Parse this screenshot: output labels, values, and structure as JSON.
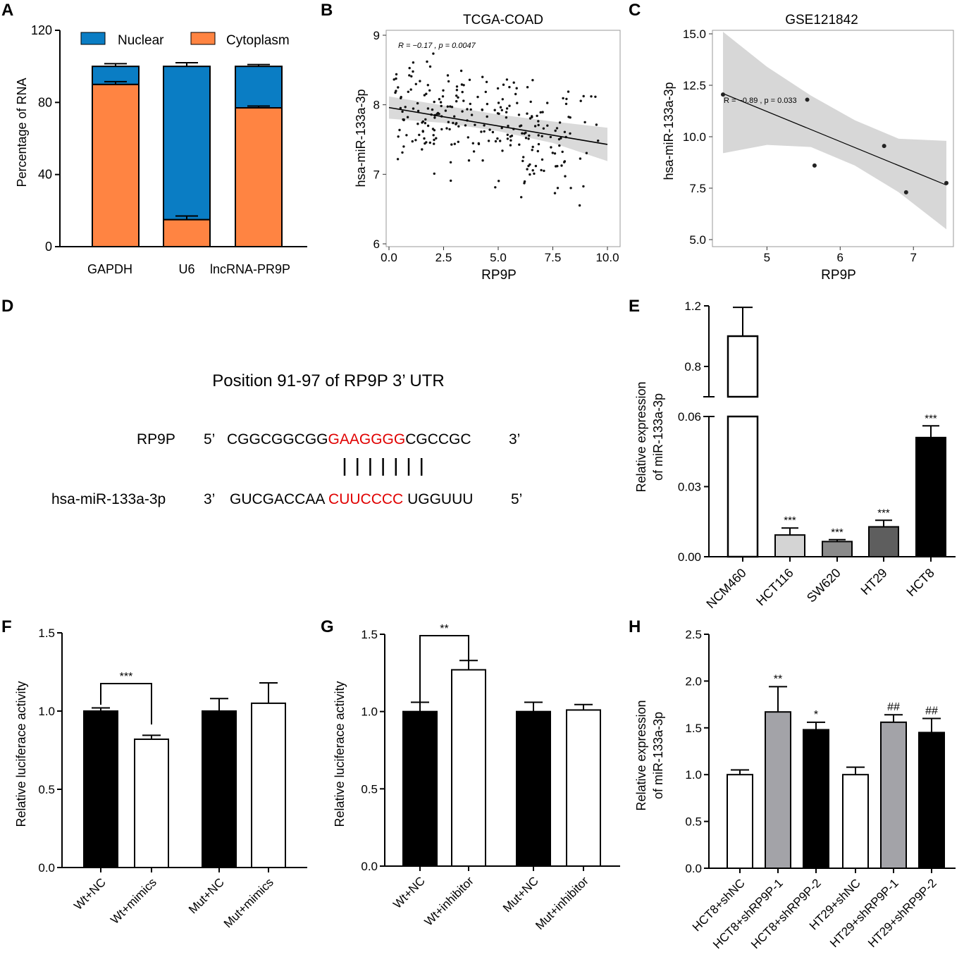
{
  "panel_labels": [
    "A",
    "B",
    "C",
    "D",
    "E",
    "F",
    "G",
    "H"
  ],
  "colors": {
    "nuclear": "#0A7DC4",
    "cytoplasm": "#FF8442",
    "ci_band": "#D3D3D3",
    "red": "#E00000",
    "gray_light": "#D4D4D4",
    "gray_mid": "#8A8A8A",
    "gray_dark": "#5E5E5E",
    "gray_shrp": "#A3A3A8"
  },
  "chart_data": [
    {
      "id": "A",
      "type": "bar",
      "stacked": true,
      "categories": [
        "GAPDH",
        "U6",
        "lncRNA-PR9P"
      ],
      "series": [
        {
          "name": "Cytoplasm",
          "values": [
            90,
            15,
            77
          ],
          "errors": [
            1.5,
            2,
            1
          ]
        },
        {
          "name": "Nuclear",
          "values": [
            10,
            85,
            23
          ],
          "errors": [
            1.5,
            2,
            1
          ]
        }
      ],
      "legend": [
        "Nuclear",
        "Cytoplasm"
      ],
      "ylabel": "Percentage of RNA",
      "ylim": [
        0,
        120
      ],
      "yticks": [
        "0",
        "40",
        "80",
        "120"
      ]
    },
    {
      "id": "B",
      "type": "scatter",
      "title": "TCGA-COAD",
      "xlabel": "RP9P",
      "ylabel": "hsa-miR-133a-3p",
      "xlim": [
        0,
        10
      ],
      "ylim": [
        6,
        9
      ],
      "xticks": [
        "0.0",
        "2.5",
        "5.0",
        "7.5",
        "10.0"
      ],
      "yticks": [
        "6",
        "7",
        "8",
        "9"
      ],
      "annotation": "R = −0.17 , p = 0.0047",
      "fit": {
        "x": [
          0,
          10
        ],
        "y": [
          7.96,
          7.43
        ]
      },
      "n_points": 260
    },
    {
      "id": "C",
      "type": "scatter",
      "title": "GSE121842",
      "xlabel": "RP9P",
      "ylabel": "hsa-miR-133a-3p",
      "xlim": [
        4.3,
        7.5
      ],
      "ylim": [
        5,
        15
      ],
      "xticks": [
        "5",
        "6",
        "7"
      ],
      "yticks": [
        "5.0",
        "7.5",
        "10.0",
        "12.5",
        "15.0"
      ],
      "annotation": "R = −0.89 , p = 0.033",
      "points": {
        "x": [
          4.4,
          5.55,
          5.65,
          6.6,
          6.9,
          7.45
        ],
        "y": [
          12.05,
          11.8,
          8.6,
          9.55,
          7.3,
          7.75
        ]
      },
      "fit": {
        "x": [
          4.4,
          7.45
        ],
        "y": [
          12.1,
          7.65
        ]
      }
    },
    {
      "id": "E",
      "type": "bar",
      "broken_axis": true,
      "categories": [
        "NCM460",
        "HCT116",
        "SW620",
        "HT29",
        "HCT8"
      ],
      "values": [
        1.0,
        0.0093,
        0.0065,
        0.0128,
        0.051
      ],
      "errors": [
        0.19,
        0.003,
        0.0008,
        0.0028,
        0.005
      ],
      "significance": [
        "",
        "***",
        "***",
        "***",
        "***"
      ],
      "ylabel_lines": [
        "Relative expression",
        "of miR-133a-3p"
      ],
      "yticks_lower": [
        "0.00",
        "0.03",
        "0.06"
      ],
      "yticks_upper": [
        "0.8",
        "1.2"
      ]
    },
    {
      "id": "F",
      "type": "bar",
      "categories": [
        "Wt+NC",
        "Wt+mimics",
        "Mut+NC",
        "Mut+mimics"
      ],
      "values": [
        1.0,
        0.82,
        1.0,
        1.05
      ],
      "errors": [
        0.02,
        0.025,
        0.08,
        0.13
      ],
      "ylabel": "Relative luciferace activity",
      "ylim": [
        0,
        1.5
      ],
      "yticks": [
        "0.0",
        "0.5",
        "1.0",
        "1.5"
      ],
      "bracket_label": "***"
    },
    {
      "id": "G",
      "type": "bar",
      "categories": [
        "Wt+NC",
        "Wt+inhibitor",
        "Mut+NC",
        "Mut+inhibitor"
      ],
      "values": [
        1.0,
        1.27,
        1.0,
        1.01
      ],
      "errors": [
        0.06,
        0.06,
        0.06,
        0.035
      ],
      "ylabel": "Relative luciferace activity",
      "ylim": [
        0,
        1.5
      ],
      "yticks": [
        "0.0",
        "0.5",
        "1.0",
        "1.5"
      ],
      "bracket_label": "**"
    },
    {
      "id": "H",
      "type": "bar",
      "categories": [
        "HCT8+shNC",
        "HCT8+shRP9P-1",
        "HCT8+shRP9P-2",
        "HT29+shNC",
        "HT29+shRP9P-1",
        "HT29+shRP9P-2"
      ],
      "values": [
        1.0,
        1.67,
        1.48,
        1.0,
        1.56,
        1.45
      ],
      "errors": [
        0.05,
        0.27,
        0.08,
        0.08,
        0.08,
        0.15
      ],
      "significance": [
        "",
        "**",
        "*",
        "",
        "##",
        "##"
      ],
      "ylabel_lines": [
        "Relative expression",
        "of miR-133a-3p"
      ],
      "ylim": [
        0,
        2.5
      ],
      "yticks": [
        "0.0",
        "0.5",
        "1.0",
        "1.5",
        "2.0",
        "2.5"
      ]
    }
  ],
  "panel_D": {
    "title": "Position 91-97 of RP9P 3’ UTR",
    "rp9p": {
      "name": "RP9P",
      "five": "5’",
      "seq_pre": "CGGCGGCGG",
      "seq_red": "GAAGGGG",
      "seq_post": "CGCCGC",
      "three": "3’"
    },
    "mir": {
      "name": "hsa-miR-133a-3p",
      "three": "3’",
      "seq_pre": "GUCGACCAA",
      "seq_red": "CUUCCCC",
      "seq_post": "UGGUUU",
      "five": "5’"
    },
    "pairs": 7
  }
}
